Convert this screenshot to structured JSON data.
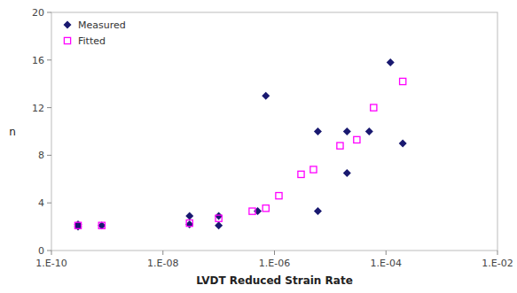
{
  "chart_data": {
    "type": "scatter",
    "x_label": "LVDT Reduced Strain Rate",
    "y_label": "n",
    "log": "x",
    "xlim": [
      1e-10,
      0.01
    ],
    "xticks": [
      {
        "value": 1e-10,
        "label": "1.E-10"
      },
      {
        "value": 1e-08,
        "label": "1.E-08"
      },
      {
        "value": 1e-06,
        "label": "1.E-06"
      },
      {
        "value": 0.0001,
        "label": "1.E-04"
      },
      {
        "value": 0.01,
        "label": "1.E-02"
      }
    ],
    "ylim": [
      0,
      20
    ],
    "yticks": [
      0,
      4,
      8,
      12,
      16,
      20
    ],
    "grid": false,
    "legend": "upper left",
    "series": [
      {
        "name": "Measured",
        "color": "#191970",
        "marker": "diamond",
        "x": [
          3e-10,
          3e-10,
          8e-10,
          3e-08,
          3e-08,
          1e-07,
          1e-07,
          5e-07,
          7e-07,
          6e-06,
          6e-06,
          2e-05,
          2e-05,
          5e-05,
          0.00012,
          0.0002
        ],
        "values": [
          2.0,
          2.2,
          2.1,
          2.2,
          2.9,
          2.1,
          2.9,
          3.3,
          13.0,
          3.3,
          10.0,
          6.5,
          10.0,
          10.0,
          15.8,
          9.0
        ]
      },
      {
        "name": "Fitted",
        "color": "#FF00FF",
        "marker": "square",
        "x": [
          3e-10,
          8e-10,
          3e-08,
          1e-07,
          4e-07,
          7e-07,
          1.2e-06,
          3e-06,
          5e-06,
          1.5e-05,
          3e-05,
          6e-05,
          0.0002
        ],
        "values": [
          2.1,
          2.1,
          2.3,
          2.7,
          3.3,
          3.55,
          4.6,
          6.4,
          6.8,
          8.8,
          9.3,
          12.0,
          14.2
        ]
      }
    ]
  }
}
